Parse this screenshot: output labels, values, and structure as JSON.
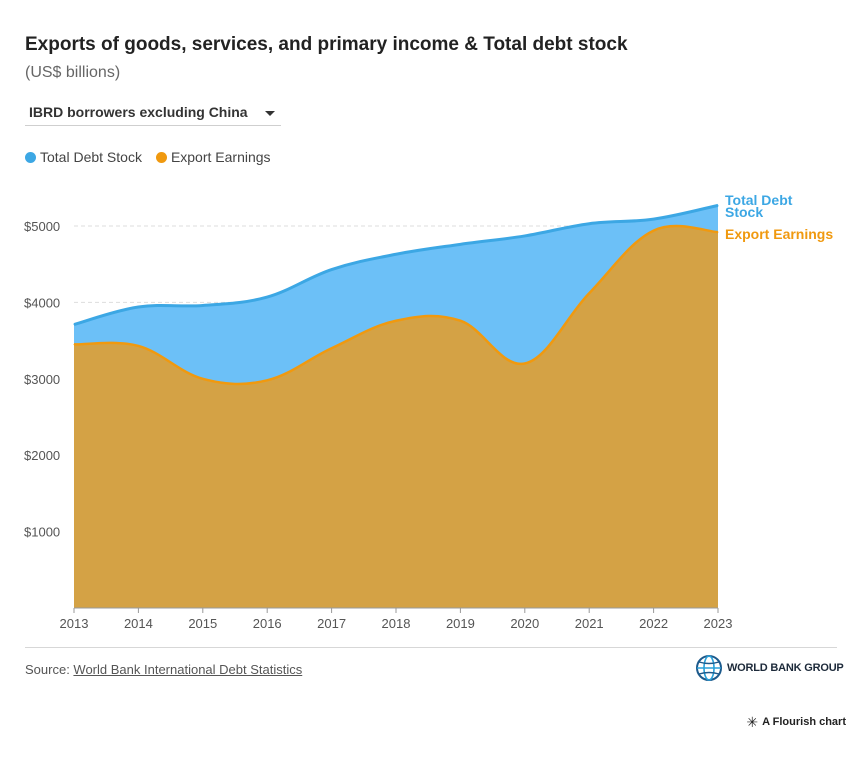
{
  "title": "Exports of goods, services, and primary income & Total debt stock",
  "subtitle": "(US$ billions)",
  "dropdown": {
    "selected": "IBRD borrowers excluding China"
  },
  "legend": [
    {
      "label": "Total Debt Stock",
      "color": "#3ca7e4"
    },
    {
      "label": "Export Earnings",
      "color": "#f0990f"
    }
  ],
  "colors": {
    "debt_line": "#3ca7e4",
    "debt_fill": "#6cc0f7",
    "export_line": "#f0990f",
    "export_fill": "#d4a245",
    "grid": "#dddddd",
    "axis_text": "#555555"
  },
  "chart_data": {
    "type": "area",
    "x": [
      2013,
      2014,
      2015,
      2016,
      2017,
      2018,
      2019,
      2020,
      2021,
      2022,
      2023
    ],
    "series": [
      {
        "name": "Total Debt Stock",
        "values": [
          3710,
          3940,
          3960,
          4070,
          4430,
          4630,
          4760,
          4870,
          5030,
          5090,
          5270
        ]
      },
      {
        "name": "Export Earnings",
        "values": [
          3450,
          3430,
          3000,
          2980,
          3400,
          3760,
          3760,
          3200,
          4120,
          4940,
          4920
        ]
      }
    ],
    "y_ticks": [
      "$1000",
      "$2000",
      "$3000",
      "$4000",
      "$5000"
    ],
    "x_ticks": [
      "2013",
      "2014",
      "2015",
      "2016",
      "2017",
      "2018",
      "2019",
      "2020",
      "2021",
      "2022",
      "2023"
    ],
    "end_labels": [
      "Total Debt Stock",
      "Export Earnings"
    ],
    "ylim": [
      0,
      5500
    ],
    "grid": true,
    "legend_position": "top-left"
  },
  "source": {
    "prefix": "Source: ",
    "link_text": "World Bank International Debt Statistics"
  },
  "logo_text": "WORLD BANK GROUP",
  "credit": "A Flourish chart"
}
